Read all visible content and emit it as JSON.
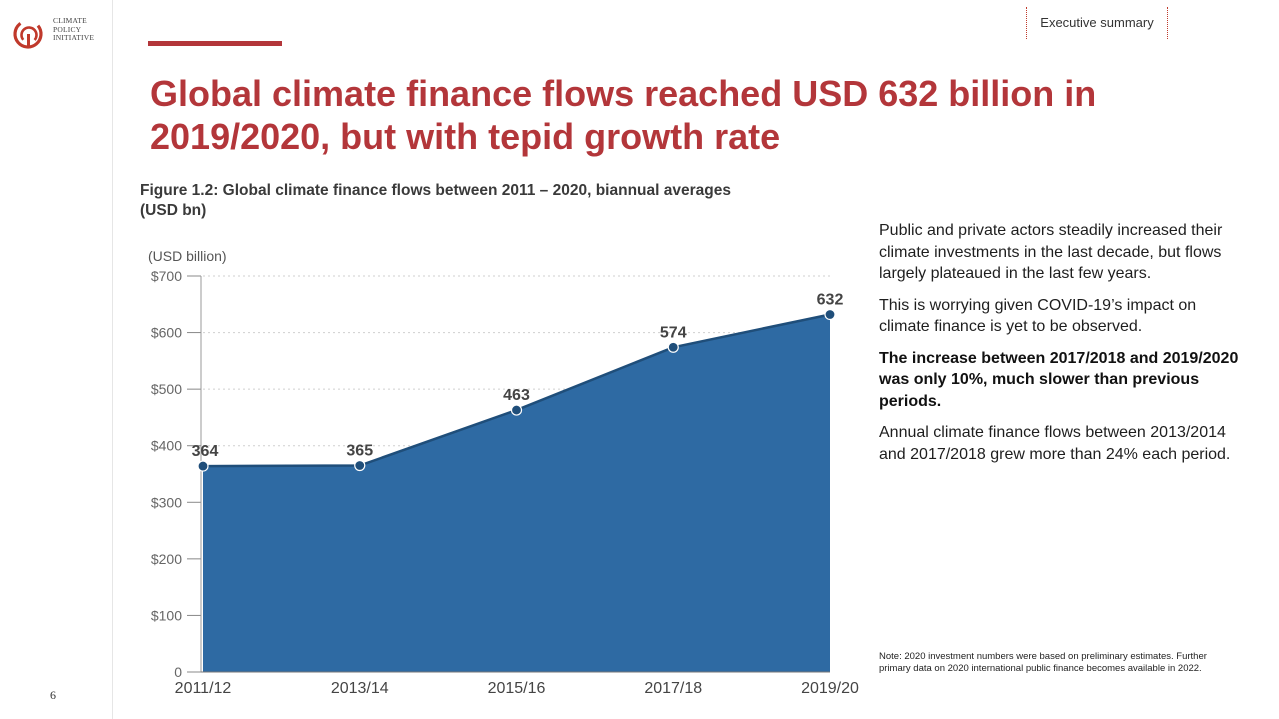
{
  "logo": {
    "line1": "CLIMATE",
    "line2": "POLICY",
    "line3": "INITIATIVE"
  },
  "page_number": "6",
  "section_label": "Executive summary",
  "headline": "Global climate finance flows reached USD 632 billion in 2019/2020, but with tepid growth rate",
  "figure_title": "Figure 1.2: Global climate finance flows between 2011 – 2020, biannual averages (USD bn)",
  "colors": {
    "accent": "#b3363a",
    "area_fill": "#2e6aa3",
    "line": "#1f4e7a"
  },
  "chart_data": {
    "type": "area",
    "title": "Figure 1.2: Global climate finance flows between 2011 – 2020, biannual averages (USD bn)",
    "ylabel": "(USD billion)",
    "xlabel": "",
    "categories": [
      "2011/12",
      "2013/14",
      "2015/16",
      "2017/18",
      "2019/20"
    ],
    "values": [
      364,
      365,
      463,
      574,
      632
    ],
    "data_labels": [
      "364",
      "365",
      "463",
      "574",
      "632"
    ],
    "ylim": [
      0,
      700
    ],
    "yticks": [
      0,
      100,
      200,
      300,
      400,
      500,
      600,
      700
    ],
    "ytick_labels": [
      "0",
      "$100",
      "$200",
      "$300",
      "$400",
      "$500",
      "$600",
      "$700"
    ],
    "grid": true,
    "legend": "none"
  },
  "side_text": {
    "p1": "Public and private actors steadily increased their climate investments in the last decade, but flows largely plateaued in the last few years.",
    "p2": "This is worrying given COVID-19’s  impact on climate finance is yet to be observed.",
    "p3": "The increase between 2017/2018 and 2019/2020 was only 10%, much slower than previous periods.",
    "p4": "Annual climate finance flows between 2013/2014 and 2017/2018 grew more than 24% each period."
  },
  "note": "Note: 2020 investment numbers were based on preliminary estimates. Further primary data on 2020 international public finance becomes available in 2022."
}
